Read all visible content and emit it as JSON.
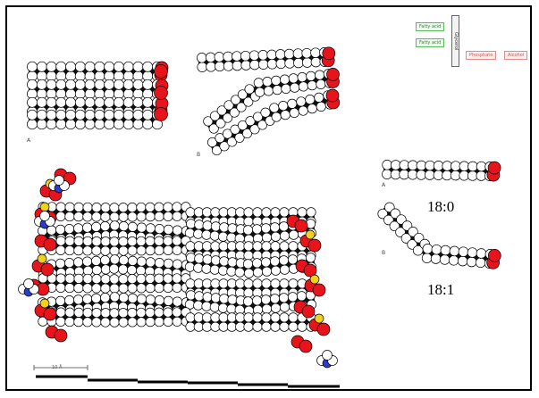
{
  "panels": {
    "top_left": {
      "label": "A"
    },
    "top_middle": {
      "label": "B"
    },
    "right_top": {
      "label": "A",
      "caption": "18:0"
    },
    "right_bottom": {
      "label": "B",
      "caption": "18:1"
    }
  },
  "legend": {
    "fatty_acid_1": "Fatty acid",
    "fatty_acid_2": "Fatty acid",
    "glycerol": "Glycerol",
    "phosphate": "Phosphate",
    "alcohol": "Alcohol"
  },
  "scale_bar": {
    "label": "10 Å"
  },
  "colors": {
    "carbon": "#111111",
    "hydrogen": "#ffffff",
    "oxygen": "#e8141c",
    "phosphorus": "#f0d21e",
    "nitrogen": "#2a3cc8"
  }
}
